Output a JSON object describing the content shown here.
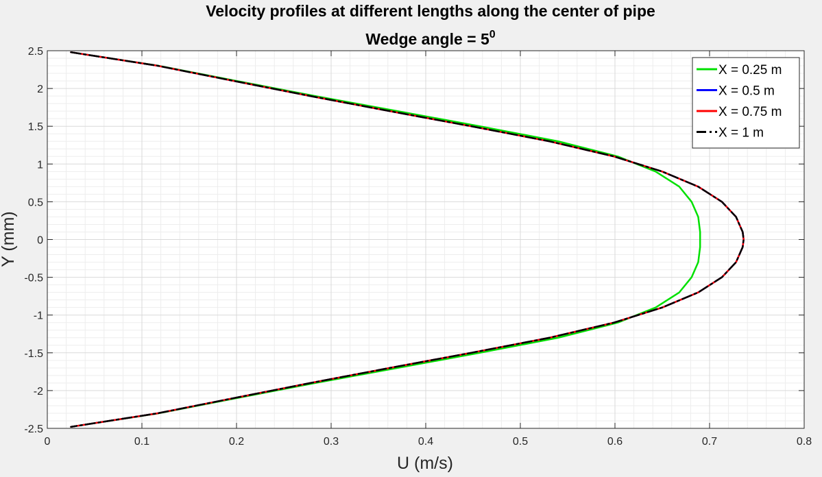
{
  "chart_data": {
    "type": "line",
    "title": "Velocity profiles at different lengths along the center of pipe",
    "subtitle_prefix": "Wedge angle = 5",
    "subtitle_superscript": "0",
    "xlabel": "U (m/s)",
    "ylabel": "Y (mm)",
    "xlim": [
      0,
      0.8
    ],
    "ylim": [
      -2.5,
      2.5
    ],
    "xticks": [
      0,
      0.1,
      0.2,
      0.3,
      0.4,
      0.5,
      0.6,
      0.7,
      0.8
    ],
    "xtick_labels": [
      "0",
      "0.1",
      "0.2",
      "0.3",
      "0.4",
      "0.5",
      "0.6",
      "0.7",
      "0.8"
    ],
    "yticks": [
      2.5,
      2,
      1.5,
      1,
      0.5,
      0,
      -0.5,
      -1,
      -1.5,
      -2,
      -2.5
    ],
    "ytick_labels": [
      "2.5",
      "2",
      "1.5",
      "1",
      "0.5",
      "0",
      "-0.5",
      "-1",
      "-1.5",
      "-2",
      "-2.5"
    ],
    "grid": true,
    "minor_grid": true,
    "legend_position": "top-right",
    "series": [
      {
        "name": "X = 0.25 m",
        "color": "#00e000",
        "line_style": "solid",
        "y": [
          2.48,
          2.3,
          2.1,
          1.9,
          1.7,
          1.5,
          1.3,
          1.1,
          0.9,
          0.7,
          0.5,
          0.3,
          0.1,
          0,
          -0.1,
          -0.3,
          -0.5,
          -0.7,
          -0.9,
          -1.1,
          -1.3,
          -1.5,
          -1.7,
          -1.9,
          -2.1,
          -2.3,
          -2.48
        ],
        "u": [
          0.025,
          0.118,
          0.2,
          0.283,
          0.37,
          0.457,
          0.54,
          0.603,
          0.643,
          0.668,
          0.681,
          0.688,
          0.69,
          0.69,
          0.69,
          0.688,
          0.681,
          0.668,
          0.643,
          0.603,
          0.54,
          0.457,
          0.37,
          0.283,
          0.2,
          0.118,
          0.025
        ]
      },
      {
        "name": "X = 0.5 m",
        "color": "#0000ff",
        "line_style": "solid",
        "y": [
          2.48,
          2.3,
          2.1,
          1.9,
          1.7,
          1.5,
          1.3,
          1.1,
          0.9,
          0.7,
          0.5,
          0.3,
          0.1,
          0,
          -0.1,
          -0.3,
          -0.5,
          -0.7,
          -0.9,
          -1.1,
          -1.3,
          -1.5,
          -1.7,
          -1.9,
          -2.1,
          -2.3,
          -2.48
        ],
        "u": [
          0.025,
          0.117,
          0.197,
          0.278,
          0.362,
          0.448,
          0.531,
          0.599,
          0.65,
          0.688,
          0.713,
          0.728,
          0.735,
          0.736,
          0.735,
          0.728,
          0.713,
          0.688,
          0.65,
          0.599,
          0.531,
          0.448,
          0.362,
          0.278,
          0.197,
          0.117,
          0.025
        ]
      },
      {
        "name": "X = 0.75 m",
        "color": "#ff0000",
        "line_style": "solid",
        "y": [
          2.48,
          2.3,
          2.1,
          1.9,
          1.7,
          1.5,
          1.3,
          1.1,
          0.9,
          0.7,
          0.5,
          0.3,
          0.1,
          0,
          -0.1,
          -0.3,
          -0.5,
          -0.7,
          -0.9,
          -1.1,
          -1.3,
          -1.5,
          -1.7,
          -1.9,
          -2.1,
          -2.3,
          -2.48
        ],
        "u": [
          0.025,
          0.117,
          0.197,
          0.278,
          0.362,
          0.448,
          0.531,
          0.599,
          0.65,
          0.688,
          0.713,
          0.728,
          0.735,
          0.736,
          0.735,
          0.728,
          0.713,
          0.688,
          0.65,
          0.599,
          0.531,
          0.448,
          0.362,
          0.278,
          0.197,
          0.117,
          0.025
        ]
      },
      {
        "name": "X = 1 m",
        "color": "#000000",
        "line_style": "dashdot",
        "y": [
          2.48,
          2.3,
          2.1,
          1.9,
          1.7,
          1.5,
          1.3,
          1.1,
          0.9,
          0.7,
          0.5,
          0.3,
          0.1,
          0,
          -0.1,
          -0.3,
          -0.5,
          -0.7,
          -0.9,
          -1.1,
          -1.3,
          -1.5,
          -1.7,
          -1.9,
          -2.1,
          -2.3,
          -2.48
        ],
        "u": [
          0.025,
          0.117,
          0.197,
          0.278,
          0.362,
          0.448,
          0.531,
          0.599,
          0.65,
          0.688,
          0.713,
          0.728,
          0.735,
          0.736,
          0.735,
          0.728,
          0.713,
          0.688,
          0.65,
          0.599,
          0.531,
          0.448,
          0.362,
          0.278,
          0.197,
          0.117,
          0.025
        ]
      }
    ]
  }
}
